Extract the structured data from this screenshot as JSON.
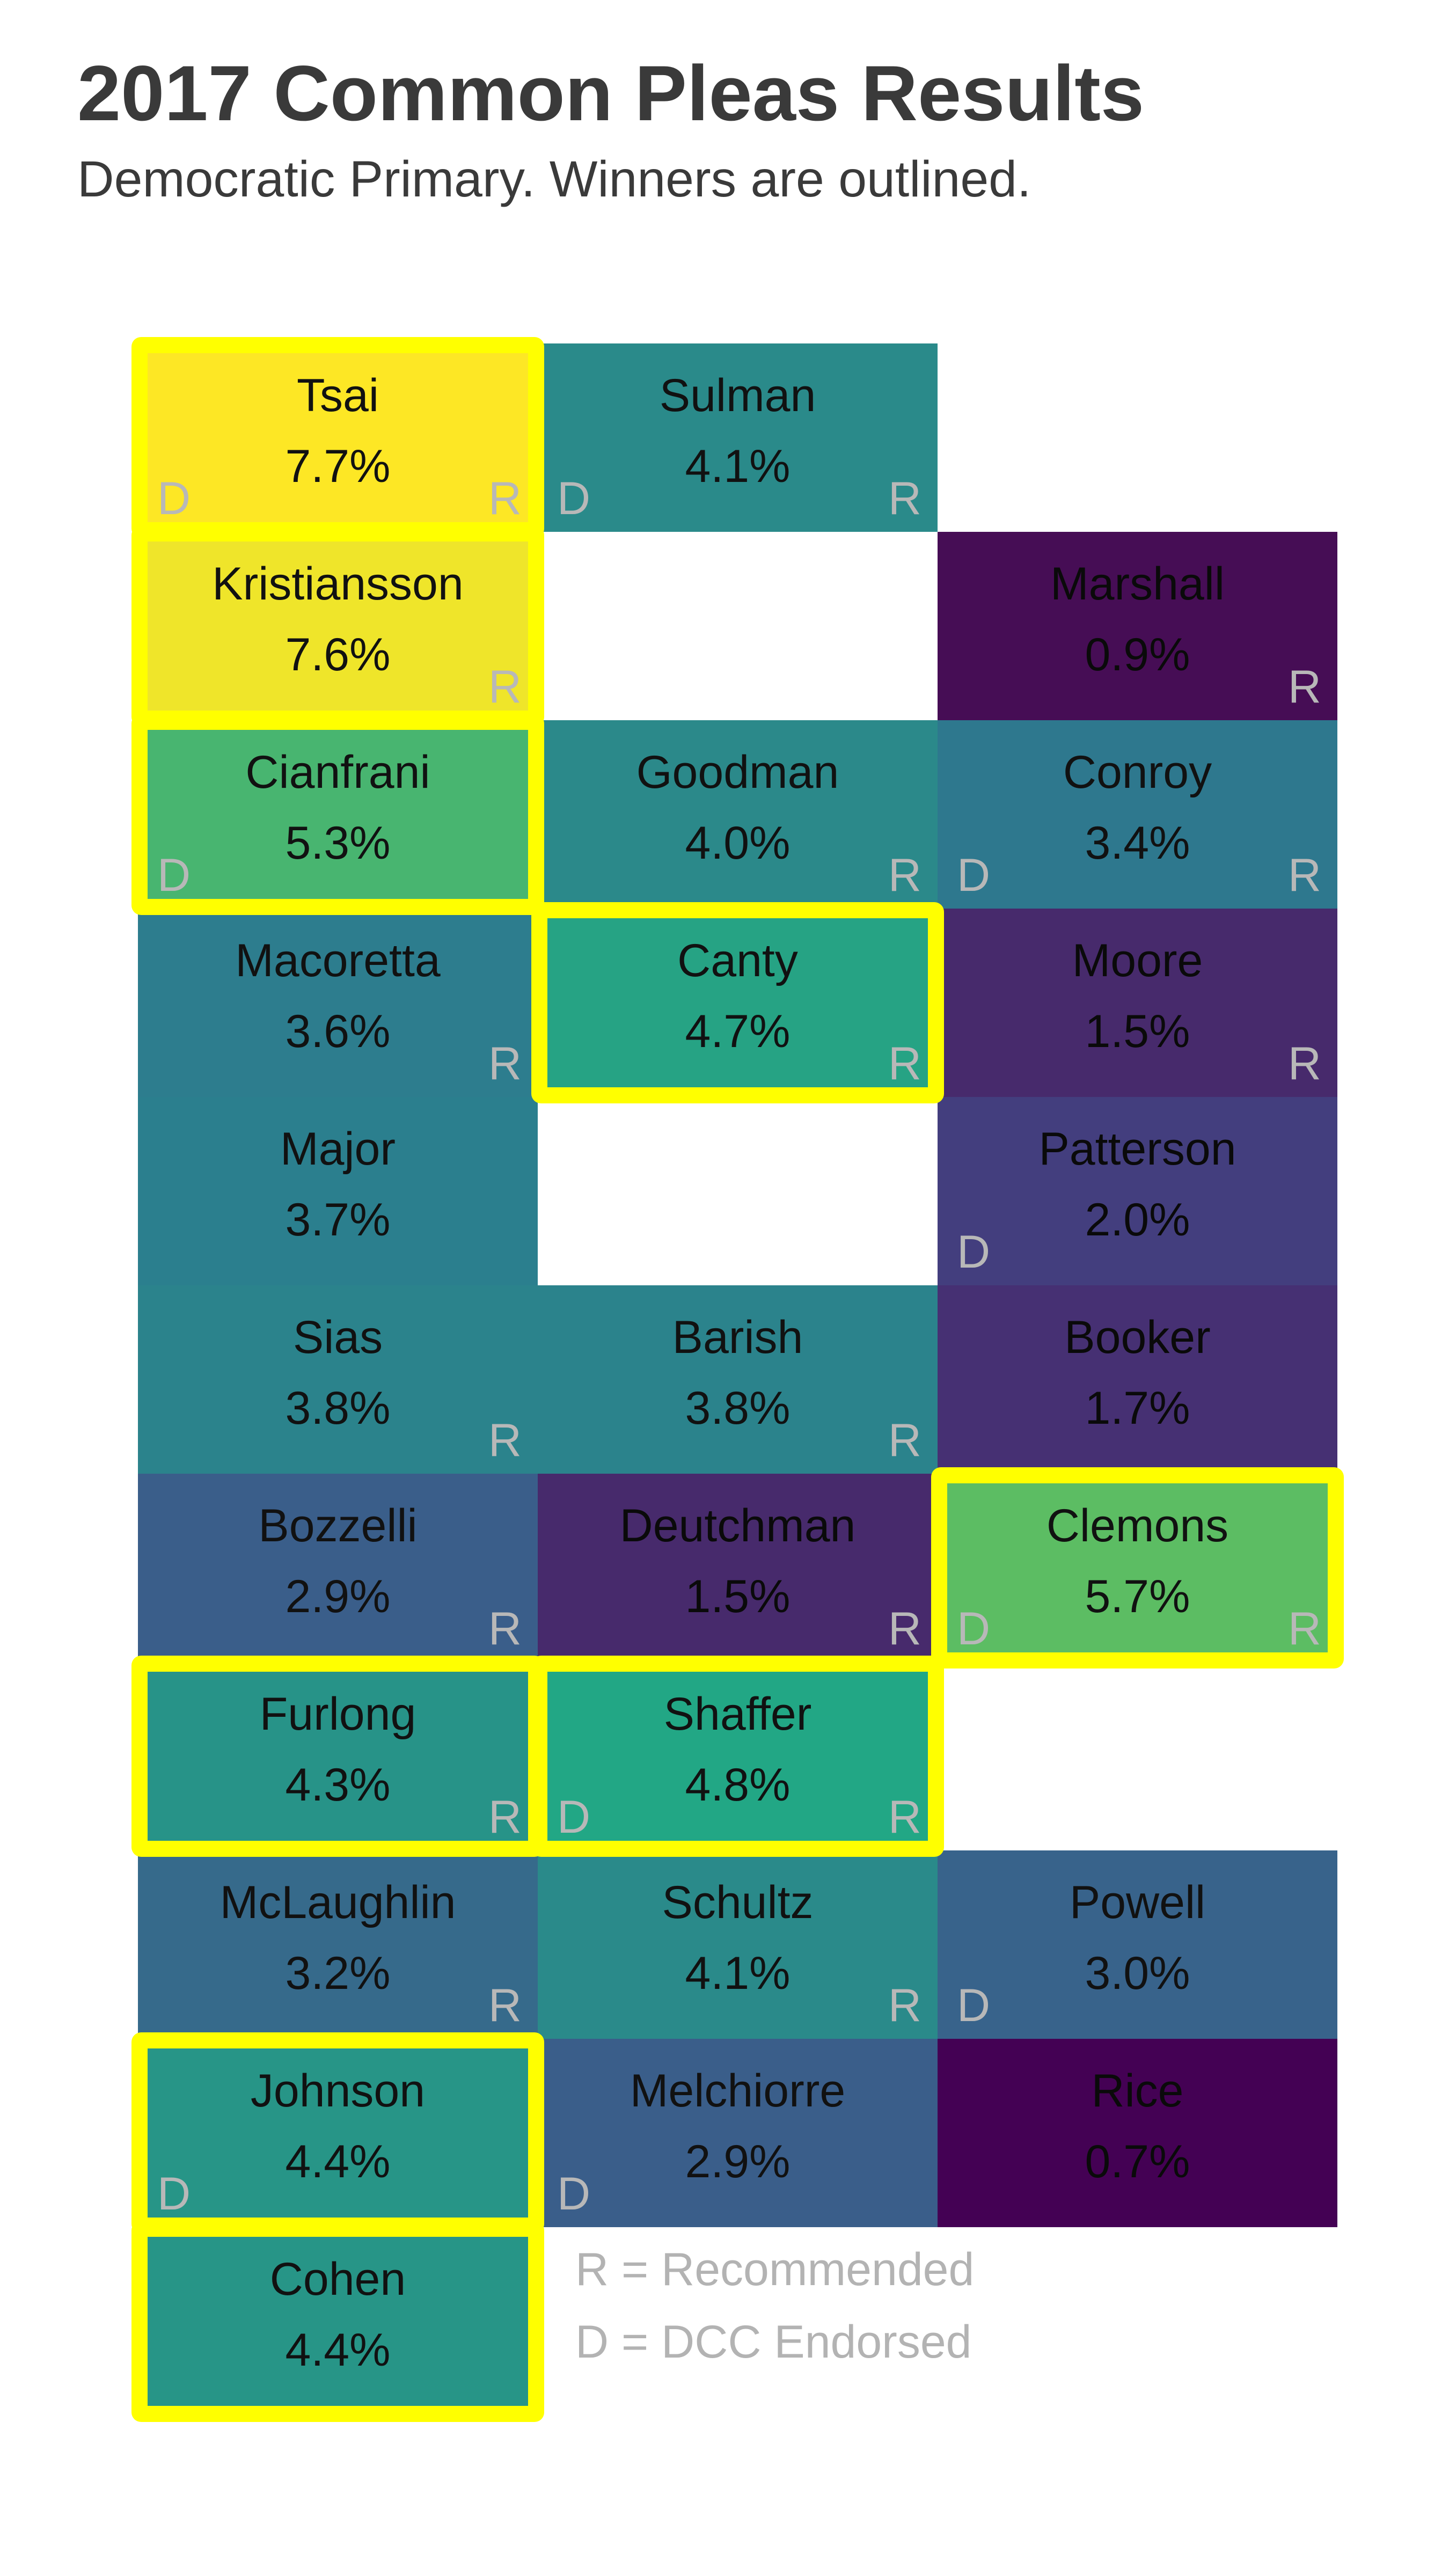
{
  "title": "2017 Common Pleas Results",
  "subtitle": "Democratic Primary. Winners are outlined.",
  "colors": {
    "winner_outline": "#ffff00",
    "flag_text": "#b8b8b8",
    "legend_text": "#b3b3b3",
    "title_text": "#3a3a3a"
  },
  "legend": {
    "r": "R = Recommended",
    "d": "D = DCC Endorsed"
  },
  "chart_data": {
    "type": "heatmap",
    "title": "2017 Common Pleas Results",
    "subtitle": "Democratic Primary. Winners are outlined.",
    "color_scale": "viridis",
    "value_range": [
      0.7,
      7.7
    ],
    "unit": "%",
    "candidates": [
      {
        "name": "Tsai",
        "pct": "7.7%",
        "value": 7.7,
        "row": 0,
        "col": 0,
        "d": true,
        "r": true,
        "winner": true,
        "color": "#fde725"
      },
      {
        "name": "Sulman",
        "pct": "4.1%",
        "value": 4.1,
        "row": 0,
        "col": 1,
        "d": true,
        "r": true,
        "winner": false,
        "color": "#2a8a8a"
      },
      {
        "name": "Kristiansson",
        "pct": "7.6%",
        "value": 7.6,
        "row": 1,
        "col": 0,
        "d": false,
        "r": true,
        "winner": true,
        "color": "#efe52a"
      },
      {
        "name": "Marshall",
        "pct": "0.9%",
        "value": 0.9,
        "row": 1,
        "col": 2,
        "d": false,
        "r": true,
        "winner": false,
        "color": "#460d55"
      },
      {
        "name": "Cianfrani",
        "pct": "5.3%",
        "value": 5.3,
        "row": 2,
        "col": 0,
        "d": true,
        "r": false,
        "winner": true,
        "color": "#48b570"
      },
      {
        "name": "Goodman",
        "pct": "4.0%",
        "value": 4.0,
        "row": 2,
        "col": 1,
        "d": false,
        "r": true,
        "winner": false,
        "color": "#2b898a"
      },
      {
        "name": "Conroy",
        "pct": "3.4%",
        "value": 3.4,
        "row": 2,
        "col": 2,
        "d": true,
        "r": true,
        "winner": false,
        "color": "#2e788e"
      },
      {
        "name": "Macoretta",
        "pct": "3.6%",
        "value": 3.6,
        "row": 3,
        "col": 0,
        "d": false,
        "r": true,
        "winner": false,
        "color": "#2d7d8e"
      },
      {
        "name": "Canty",
        "pct": "4.7%",
        "value": 4.7,
        "row": 3,
        "col": 1,
        "d": false,
        "r": true,
        "winner": true,
        "color": "#26a384"
      },
      {
        "name": "Moore",
        "pct": "1.5%",
        "value": 1.5,
        "row": 3,
        "col": 2,
        "d": false,
        "r": true,
        "winner": false,
        "color": "#472a6c"
      },
      {
        "name": "Major",
        "pct": "3.7%",
        "value": 3.7,
        "row": 4,
        "col": 0,
        "d": false,
        "r": false,
        "winner": false,
        "color": "#2b7f8e"
      },
      {
        "name": "Patterson",
        "pct": "2.0%",
        "value": 2.0,
        "row": 4,
        "col": 2,
        "d": true,
        "r": false,
        "winner": false,
        "color": "#433e7e"
      },
      {
        "name": "Sias",
        "pct": "3.8%",
        "value": 3.8,
        "row": 5,
        "col": 0,
        "d": false,
        "r": true,
        "winner": false,
        "color": "#2b838c"
      },
      {
        "name": "Barish",
        "pct": "3.8%",
        "value": 3.8,
        "row": 5,
        "col": 1,
        "d": false,
        "r": true,
        "winner": false,
        "color": "#2b838c"
      },
      {
        "name": "Booker",
        "pct": "1.7%",
        "value": 1.7,
        "row": 5,
        "col": 2,
        "d": false,
        "r": false,
        "winner": false,
        "color": "#463073"
      },
      {
        "name": "Bozzelli",
        "pct": "2.9%",
        "value": 2.9,
        "row": 6,
        "col": 0,
        "d": false,
        "r": true,
        "winner": false,
        "color": "#3a5e8a"
      },
      {
        "name": "Deutchman",
        "pct": "1.5%",
        "value": 1.5,
        "row": 6,
        "col": 1,
        "d": false,
        "r": true,
        "winner": false,
        "color": "#472a6c"
      },
      {
        "name": "Clemons",
        "pct": "5.7%",
        "value": 5.7,
        "row": 6,
        "col": 2,
        "d": true,
        "r": true,
        "winner": true,
        "color": "#5cbd63"
      },
      {
        "name": "Furlong",
        "pct": "4.3%",
        "value": 4.3,
        "row": 7,
        "col": 0,
        "d": false,
        "r": true,
        "winner": true,
        "color": "#279388"
      },
      {
        "name": "Shaffer",
        "pct": "4.8%",
        "value": 4.8,
        "row": 7,
        "col": 1,
        "d": true,
        "r": true,
        "winner": true,
        "color": "#22a785"
      },
      {
        "name": "McLaughlin",
        "pct": "3.2%",
        "value": 3.2,
        "row": 8,
        "col": 0,
        "d": false,
        "r": true,
        "winner": false,
        "color": "#366a8b"
      },
      {
        "name": "Schultz",
        "pct": "4.1%",
        "value": 4.1,
        "row": 8,
        "col": 1,
        "d": false,
        "r": true,
        "winner": false,
        "color": "#2a8a8a"
      },
      {
        "name": "Powell",
        "pct": "3.0%",
        "value": 3.0,
        "row": 8,
        "col": 2,
        "d": true,
        "r": false,
        "winner": false,
        "color": "#38638b"
      },
      {
        "name": "Johnson",
        "pct": "4.4%",
        "value": 4.4,
        "row": 9,
        "col": 0,
        "d": true,
        "r": false,
        "winner": true,
        "color": "#279587"
      },
      {
        "name": "Melchiorre",
        "pct": "2.9%",
        "value": 2.9,
        "row": 9,
        "col": 1,
        "d": true,
        "r": false,
        "winner": false,
        "color": "#3a5e8a"
      },
      {
        "name": "Rice",
        "pct": "0.7%",
        "value": 0.7,
        "row": 9,
        "col": 2,
        "d": false,
        "r": false,
        "winner": false,
        "color": "#440154"
      },
      {
        "name": "Cohen",
        "pct": "4.4%",
        "value": 4.4,
        "row": 10,
        "col": 0,
        "d": false,
        "r": false,
        "winner": true,
        "color": "#279587"
      }
    ]
  }
}
